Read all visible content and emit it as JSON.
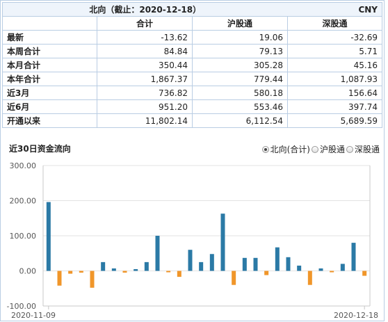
{
  "table": {
    "title": "北向（截止：2020-12-18）",
    "currency": "CNY",
    "columns": [
      "合计",
      "沪股通",
      "深股通"
    ],
    "rows": [
      {
        "label": "最新",
        "values": [
          "-13.62",
          "19.06",
          "-32.69"
        ]
      },
      {
        "label": "本周合计",
        "values": [
          "84.84",
          "79.13",
          "5.71"
        ]
      },
      {
        "label": "本月合计",
        "values": [
          "350.44",
          "305.28",
          "45.16"
        ]
      },
      {
        "label": "本年合计",
        "values": [
          "1,867.37",
          "779.44",
          "1,087.93"
        ]
      },
      {
        "label": "近3月",
        "values": [
          "736.82",
          "580.18",
          "156.64"
        ]
      },
      {
        "label": "近6月",
        "values": [
          "951.20",
          "553.46",
          "397.74"
        ]
      },
      {
        "label": "开通以来",
        "values": [
          "11,802.14",
          "6,112.54",
          "5,689.59"
        ]
      }
    ]
  },
  "chart_title": "近30日资金流向",
  "options": [
    {
      "label": "北向(合计)",
      "selected": true
    },
    {
      "label": "沪股通",
      "selected": false
    },
    {
      "label": "深股通",
      "selected": false
    }
  ],
  "chart_data": {
    "type": "bar",
    "title": "近30日资金流向",
    "xlabel": "",
    "ylabel": "",
    "ylim": [
      -100,
      300
    ],
    "yticks": [
      "300.00",
      "200.00",
      "100.00",
      "0.00",
      "-100.00"
    ],
    "x_start_label": "2020-11-09",
    "x_end_label": "2020-12-18",
    "positive_color": "#2b7aa6",
    "negative_color": "#f0962a",
    "values": [
      196,
      -42,
      -8,
      -5,
      -48,
      25,
      7,
      -5,
      5,
      25,
      100,
      -4,
      -17,
      60,
      25,
      48,
      163,
      -40,
      37,
      37,
      -12,
      67,
      39,
      15,
      -40,
      7,
      -4,
      20,
      80,
      -14
    ]
  }
}
